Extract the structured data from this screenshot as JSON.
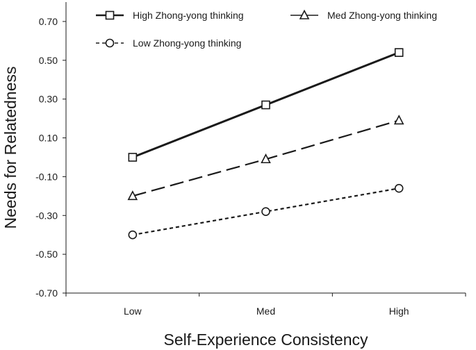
{
  "chart_data": {
    "type": "line",
    "title": "",
    "xlabel": "Self-Experience Consistency",
    "ylabel": "Needs for Relatedness",
    "categories": [
      "Low",
      "Med",
      "High"
    ],
    "ylim": [
      -0.7,
      0.8
    ],
    "yticks": [
      "0.70",
      "0.50",
      "0.30",
      "0.10",
      "-0.10",
      "-0.30",
      "-0.50",
      "-0.70"
    ],
    "grid": false,
    "legend_position": "top",
    "series": [
      {
        "name": "High Zhong-yong thinking",
        "values": [
          0.0,
          0.27,
          0.54
        ],
        "marker": "square",
        "dash": "solid"
      },
      {
        "name": "Med Zhong-yong thinking",
        "values": [
          -0.2,
          -0.01,
          0.19
        ],
        "marker": "triangle",
        "dash": "long-dash"
      },
      {
        "name": "Low Zhong-yong thinking",
        "values": [
          -0.4,
          -0.28,
          -0.16
        ],
        "marker": "circle",
        "dash": "short-dash"
      }
    ]
  }
}
